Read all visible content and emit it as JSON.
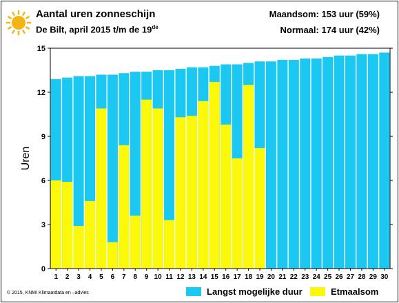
{
  "header": {
    "title": "Aantal uren zonneschijn",
    "subtitle_main": "De Bilt, april 2015 t/m de 19",
    "subtitle_sup": "de",
    "stat_month": "Maandsom: 153 uur (59%)",
    "stat_normal": "Normaal: 174 uur (42%)"
  },
  "footer": "© 2015, KNMI Klimaatdata en –advies",
  "icons": {
    "logo": "sun-icon"
  },
  "colors": {
    "max_duration": "#1ac8f2",
    "daily_sum": "#fbf80a",
    "sun": "#f3b416"
  },
  "chart_data": {
    "type": "bar",
    "ylabel": "Uren",
    "xlabel": "",
    "ylim": [
      0,
      15
    ],
    "yticks": [
      0,
      3,
      6,
      9,
      12,
      15
    ],
    "grid": false,
    "legend_position": "bottom-right",
    "categories": [
      "1",
      "2",
      "3",
      "4",
      "5",
      "6",
      "7",
      "8",
      "9",
      "10",
      "11",
      "12",
      "13",
      "14",
      "15",
      "16",
      "17",
      "18",
      "19",
      "20",
      "21",
      "22",
      "23",
      "24",
      "25",
      "26",
      "27",
      "28",
      "29",
      "30"
    ],
    "series": [
      {
        "name": "Langst mogelijke duur",
        "color": "#1ac8f2",
        "values": [
          12.9,
          13.0,
          13.1,
          13.1,
          13.2,
          13.2,
          13.3,
          13.4,
          13.4,
          13.5,
          13.5,
          13.6,
          13.7,
          13.7,
          13.8,
          13.9,
          13.9,
          14.0,
          14.1,
          14.1,
          14.2,
          14.2,
          14.3,
          14.3,
          14.4,
          14.5,
          14.5,
          14.6,
          14.6,
          14.7
        ]
      },
      {
        "name": "Etmaalsom",
        "color": "#fbf80a",
        "values": [
          6.0,
          5.9,
          2.9,
          4.6,
          10.9,
          1.8,
          8.4,
          3.6,
          11.5,
          10.9,
          3.3,
          10.3,
          10.4,
          11.4,
          12.7,
          9.8,
          7.5,
          12.5,
          8.2,
          null,
          null,
          null,
          null,
          null,
          null,
          null,
          null,
          null,
          null,
          null
        ]
      }
    ]
  }
}
